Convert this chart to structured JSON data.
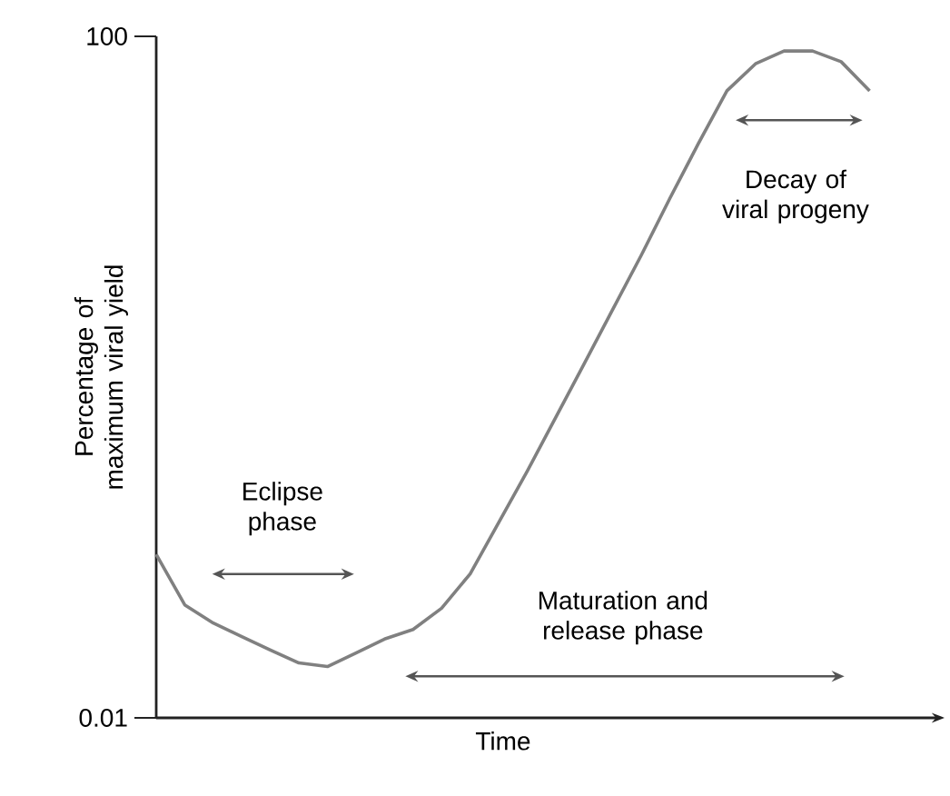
{
  "chart_data": {
    "type": "line",
    "xlabel": "Time",
    "ylabel": "Percentage of maximum viral yield",
    "categories": [
      null,
      null,
      null,
      null,
      null,
      null,
      null,
      null,
      null,
      null,
      null,
      null,
      null,
      null,
      null,
      null,
      null,
      null,
      null,
      null,
      null,
      null,
      null,
      null,
      null,
      null
    ],
    "values": [
      0.091,
      0.046,
      0.036,
      0.03,
      0.025,
      0.021,
      0.02,
      0.024,
      0.029,
      0.033,
      0.044,
      0.07,
      0.14,
      0.28,
      0.58,
      1.2,
      2.5,
      5.2,
      11.2,
      23.5,
      47.9,
      69,
      82,
      82,
      71,
      47.9
    ],
    "color": "#808080",
    "log": "y",
    "ylim": [
      0.01,
      100
    ],
    "yticks": [
      0.01,
      100
    ],
    "annotations": [
      "Eclipse phase",
      "Maturation and release phase",
      "Decay of viral progeny"
    ]
  }
}
